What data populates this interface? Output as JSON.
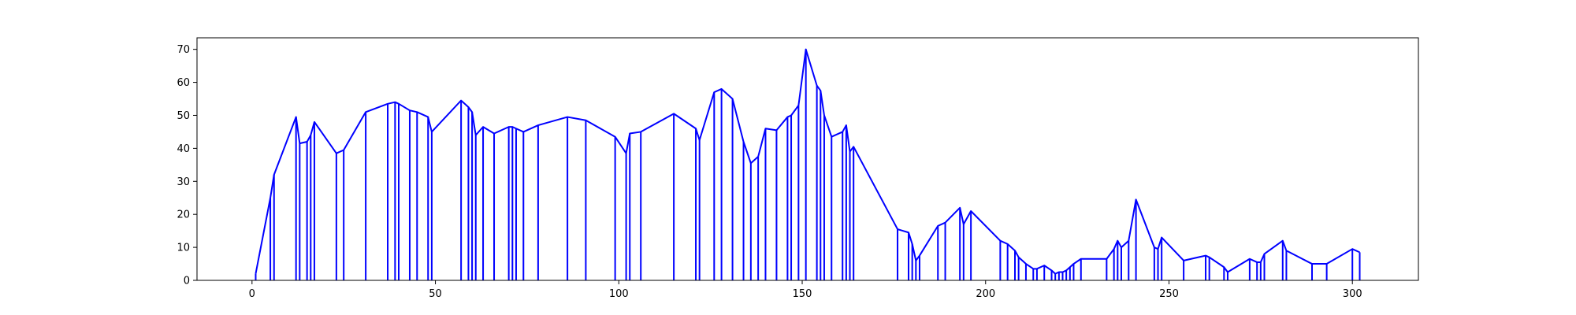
{
  "chart_data": {
    "type": "line",
    "title": "",
    "xlabel": "",
    "ylabel": "",
    "xlim": [
      -15,
      318
    ],
    "ylim": [
      0,
      73.5
    ],
    "grid": false,
    "line_color": "#0000ff",
    "x_ticks": [
      0,
      50,
      100,
      150,
      200,
      250,
      300
    ],
    "y_ticks": [
      0,
      10,
      20,
      30,
      40,
      50,
      60,
      70
    ],
    "points": [
      [
        1,
        2
      ],
      [
        5,
        25
      ],
      [
        6,
        32
      ],
      [
        12,
        49.5
      ],
      [
        13,
        41.5
      ],
      [
        15,
        42
      ],
      [
        16,
        44
      ],
      [
        17,
        48
      ],
      [
        23,
        38.5
      ],
      [
        25,
        39.5
      ],
      [
        31,
        51
      ],
      [
        37,
        53.5
      ],
      [
        39,
        54
      ],
      [
        40,
        53.5
      ],
      [
        43,
        51.5
      ],
      [
        45,
        51
      ],
      [
        48,
        49.5
      ],
      [
        49,
        45
      ],
      [
        57,
        54.5
      ],
      [
        59,
        52.5
      ],
      [
        60,
        51
      ],
      [
        61,
        44
      ],
      [
        63,
        46.5
      ],
      [
        66,
        44.5
      ],
      [
        70,
        46.5
      ],
      [
        71,
        46.5
      ],
      [
        72,
        46
      ],
      [
        74,
        45
      ],
      [
        78,
        47
      ],
      [
        86,
        49.5
      ],
      [
        91,
        48.5
      ],
      [
        99,
        43.5
      ],
      [
        102,
        38.5
      ],
      [
        103,
        44.5
      ],
      [
        106,
        45
      ],
      [
        115,
        50.5
      ],
      [
        121,
        46
      ],
      [
        122,
        42.5
      ],
      [
        126,
        57
      ],
      [
        128,
        58
      ],
      [
        131,
        55
      ],
      [
        134,
        42
      ],
      [
        136,
        35.5
      ],
      [
        138,
        37.5
      ],
      [
        140,
        46
      ],
      [
        143,
        45.5
      ],
      [
        146,
        49.5
      ],
      [
        147,
        50
      ],
      [
        149,
        53
      ],
      [
        151,
        70
      ],
      [
        154,
        59
      ],
      [
        155,
        57.5
      ],
      [
        156,
        50
      ],
      [
        158,
        43.5
      ],
      [
        161,
        45
      ],
      [
        162,
        47
      ],
      [
        163,
        39
      ],
      [
        164,
        40.5
      ],
      [
        176,
        15.5
      ],
      [
        179,
        14.5
      ],
      [
        180,
        11
      ],
      [
        181,
        6
      ],
      [
        182,
        7.5
      ],
      [
        187,
        16.5
      ],
      [
        189,
        17.5
      ],
      [
        193,
        22
      ],
      [
        194,
        17
      ],
      [
        196,
        21
      ],
      [
        204,
        12
      ],
      [
        206,
        11
      ],
      [
        208,
        9
      ],
      [
        209,
        7
      ],
      [
        211,
        5
      ],
      [
        213,
        3.5
      ],
      [
        214,
        3.5
      ],
      [
        216,
        4.5
      ],
      [
        218,
        3
      ],
      [
        219,
        2
      ],
      [
        220,
        2.5
      ],
      [
        221,
        2.5
      ],
      [
        222,
        3
      ],
      [
        223,
        4
      ],
      [
        224,
        5
      ],
      [
        226,
        6.5
      ],
      [
        233,
        6.5
      ],
      [
        235,
        9.5
      ],
      [
        236,
        12
      ],
      [
        237,
        10
      ],
      [
        239,
        12
      ],
      [
        241,
        24.5
      ],
      [
        246,
        10
      ],
      [
        247,
        9.5
      ],
      [
        248,
        13
      ],
      [
        254,
        6
      ],
      [
        260,
        7.5
      ],
      [
        261,
        7
      ],
      [
        265,
        4
      ],
      [
        266,
        2.5
      ],
      [
        272,
        6.5
      ],
      [
        274,
        5.5
      ],
      [
        275,
        5.5
      ],
      [
        276,
        8
      ],
      [
        281,
        12
      ],
      [
        282,
        9
      ],
      [
        289,
        5
      ],
      [
        293,
        5
      ],
      [
        300,
        9.5
      ],
      [
        302,
        8.5
      ]
    ]
  }
}
